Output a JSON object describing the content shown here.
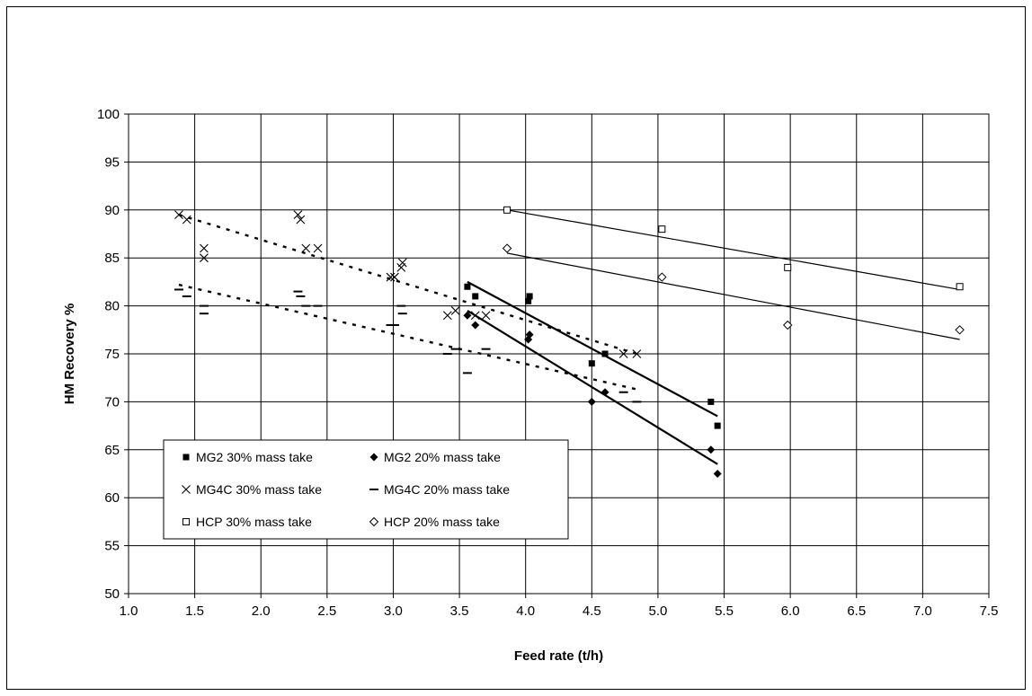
{
  "chart_data": {
    "type": "scatter",
    "title": "",
    "xlabel": "Feed rate (t/h)",
    "ylabel": "HM Recovery %",
    "xlim": [
      1.0,
      7.5
    ],
    "ylim": [
      50,
      100
    ],
    "xticks": [
      "1.0",
      "1.5",
      "2.0",
      "2.5",
      "3.0",
      "3.5",
      "4.0",
      "4.5",
      "5.0",
      "5.5",
      "6.0",
      "6.5",
      "7.0",
      "7.5"
    ],
    "yticks": [
      "50",
      "55",
      "60",
      "65",
      "70",
      "75",
      "80",
      "85",
      "90",
      "95",
      "100"
    ],
    "grid": true,
    "legend_position": "lower-left",
    "series": [
      {
        "name": "MG2 30% mass take",
        "marker": "filled-square",
        "points": [
          [
            3.56,
            82
          ],
          [
            3.62,
            81
          ],
          [
            4.02,
            80.5
          ],
          [
            4.03,
            81
          ],
          [
            4.5,
            74
          ],
          [
            4.6,
            75
          ],
          [
            5.4,
            70
          ],
          [
            5.45,
            67.5
          ]
        ],
        "trend": {
          "style": "solid-bold",
          "from": [
            3.56,
            82.5
          ],
          "to": [
            5.45,
            68.5
          ]
        }
      },
      {
        "name": "MG2 20% mass take",
        "marker": "filled-diamond",
        "points": [
          [
            3.56,
            79
          ],
          [
            3.62,
            78
          ],
          [
            4.02,
            76.5
          ],
          [
            4.03,
            77
          ],
          [
            4.5,
            70
          ],
          [
            4.6,
            71
          ],
          [
            5.4,
            65
          ],
          [
            5.45,
            62.5
          ]
        ],
        "trend": {
          "style": "solid-bold",
          "from": [
            3.56,
            79.5
          ],
          "to": [
            5.45,
            63.5
          ]
        }
      },
      {
        "name": "MG4C 30% mass take",
        "marker": "x",
        "points": [
          [
            1.38,
            89.5
          ],
          [
            1.44,
            89
          ],
          [
            1.57,
            86
          ],
          [
            1.57,
            85
          ],
          [
            2.28,
            89.5
          ],
          [
            2.3,
            89
          ],
          [
            2.34,
            86
          ],
          [
            2.43,
            86
          ],
          [
            2.98,
            83
          ],
          [
            3.01,
            83
          ],
          [
            3.06,
            84
          ],
          [
            3.07,
            84.5
          ],
          [
            3.41,
            79
          ],
          [
            3.47,
            79.5
          ],
          [
            3.62,
            79
          ],
          [
            3.7,
            79
          ],
          [
            4.74,
            75
          ],
          [
            4.84,
            75
          ]
        ],
        "trend": {
          "style": "dashed",
          "from": [
            1.38,
            89.5
          ],
          "to": [
            4.84,
            75
          ]
        }
      },
      {
        "name": "MG4C 20% mass take",
        "marker": "dash",
        "points": [
          [
            1.38,
            81.7
          ],
          [
            1.44,
            81
          ],
          [
            1.57,
            80
          ],
          [
            1.57,
            79.2
          ],
          [
            2.28,
            81.5
          ],
          [
            2.3,
            81
          ],
          [
            2.34,
            80
          ],
          [
            2.43,
            80
          ],
          [
            2.98,
            78
          ],
          [
            3.01,
            78
          ],
          [
            3.06,
            80
          ],
          [
            3.07,
            79.2
          ],
          [
            3.41,
            75
          ],
          [
            3.47,
            75.5
          ],
          [
            3.56,
            73
          ],
          [
            3.7,
            75.5
          ],
          [
            4.74,
            71
          ],
          [
            4.84,
            70
          ]
        ],
        "trend": {
          "style": "dashed",
          "from": [
            1.38,
            82.2
          ],
          "to": [
            4.84,
            71.3
          ]
        }
      },
      {
        "name": "HCP 30% mass take",
        "marker": "open-square",
        "points": [
          [
            3.86,
            90
          ],
          [
            5.03,
            88
          ],
          [
            5.98,
            84
          ],
          [
            7.28,
            82
          ]
        ],
        "trend": {
          "style": "solid",
          "from": [
            3.86,
            90
          ],
          "to": [
            7.28,
            81.7
          ]
        }
      },
      {
        "name": "HCP  20% mass take",
        "marker": "open-diamond",
        "points": [
          [
            3.86,
            86
          ],
          [
            5.03,
            83
          ],
          [
            5.98,
            78
          ],
          [
            7.28,
            77.5
          ]
        ],
        "trend": {
          "style": "solid",
          "from": [
            3.86,
            85.5
          ],
          "to": [
            7.28,
            76.5
          ]
        }
      }
    ]
  }
}
